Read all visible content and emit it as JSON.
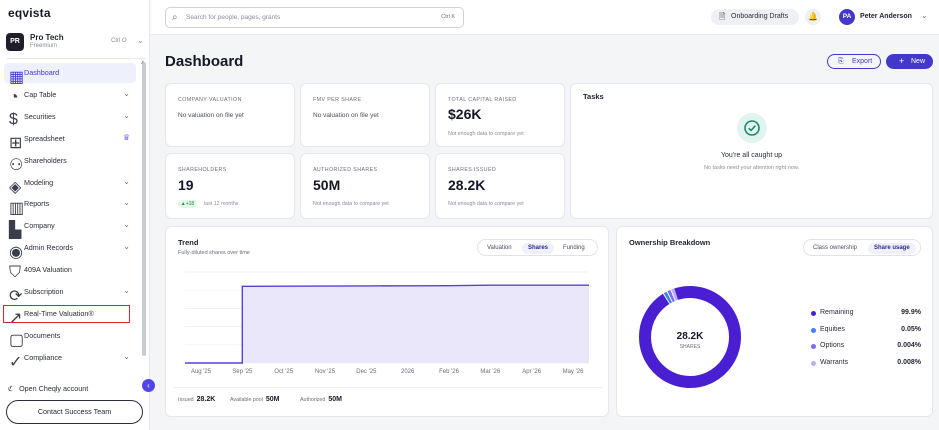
{
  "brand": {
    "logo": "eqvista"
  },
  "org": {
    "initials": "PR",
    "name": "Pro Tech",
    "plan": "Freemium",
    "shortcut": "Ctrl O"
  },
  "sidebar": {
    "items": [
      {
        "label": "Dashboard",
        "icon": "grid-icon",
        "active": true
      },
      {
        "label": "Cap Table",
        "icon": "chart-pie-icon",
        "chevron": true
      },
      {
        "label": "Securities",
        "icon": "dollar-icon",
        "chevron": true
      },
      {
        "label": "Spreadsheet",
        "icon": "table-icon",
        "crown": true
      },
      {
        "label": "Shareholders",
        "icon": "users-icon"
      },
      {
        "label": "Modeling",
        "icon": "layers-icon",
        "chevron": true
      },
      {
        "label": "Reports",
        "icon": "bar-chart-icon",
        "chevron": true
      },
      {
        "label": "Company",
        "icon": "building-icon",
        "chevron": true
      },
      {
        "label": "Admin Records",
        "icon": "record-icon",
        "chevron": true
      },
      {
        "label": "409A Valuation",
        "icon": "shield-icon"
      },
      {
        "label": "Subscription",
        "icon": "subscription-icon",
        "chevron": true
      },
      {
        "label": "Real-Time Valuation®",
        "icon": "trend-line-icon"
      },
      {
        "label": "Documents",
        "icon": "document-icon"
      },
      {
        "label": "Compliance",
        "icon": "compliance-icon",
        "chevron": true
      }
    ],
    "cheqly": "Open Cheqly account",
    "contact": "Contact Success Team"
  },
  "header": {
    "search_placeholder": "Search for people, pages, grants",
    "search_shortcut": "Ctrl K",
    "drafts": "Onboarding Drafts",
    "avatar_initials": "PA",
    "user_name": "Peter Anderson"
  },
  "page": {
    "title": "Dashboard",
    "export": "Export",
    "new": "New"
  },
  "metrics": {
    "company_valuation": {
      "label": "COMPANY VALUATION",
      "note": "No valuation on file yet"
    },
    "fmv": {
      "label": "FMV PER SHARE",
      "note": "No valuation on file yet"
    },
    "capital": {
      "label": "TOTAL CAPITAL RAISED",
      "value": "$26K",
      "sub": "Not enough data to compare yet"
    },
    "shareholders": {
      "label": "SHAREHOLDERS",
      "value": "19",
      "badge": "▲+18",
      "sub": "last 12 months"
    },
    "authorized": {
      "label": "AUTHORIZED SHARES",
      "value": "50M",
      "sub": "Not enough data to compare yet"
    },
    "issued": {
      "label": "SHARES ISSUED",
      "value": "28.2K",
      "sub": "Not enough data to compare yet"
    }
  },
  "tasks": {
    "title": "Tasks",
    "caught_up": "You're all caught up",
    "nothing": "No tasks need your attention right now."
  },
  "trend": {
    "title": "Trend",
    "subtitle": "Fully-diluted shares over time",
    "tabs": [
      "Valuation",
      "Shares",
      "Funding"
    ],
    "active_tab": "Shares",
    "footer": {
      "issued_label": "Issued",
      "issued_value": "28.2K",
      "pool_label": "Available pool",
      "pool_value": "50M",
      "authorized_label": "Authorized",
      "authorized_value": "50M"
    }
  },
  "chart_data": [
    {
      "type": "area",
      "title": "Trend",
      "subtitle": "Fully-diluted shares over time",
      "x": [
        "Aug '25",
        "Sep '25",
        "Oct '25",
        "Nov '25",
        "Dec '25",
        "2026",
        "Feb '26",
        "Mar '26",
        "Apr '26",
        "May '26"
      ],
      "points": [
        {
          "x": "Aug '25",
          "y": 0
        },
        {
          "x": "Sep '25",
          "y": 0
        },
        {
          "x": "Sep '25",
          "y": 27800
        },
        {
          "x": "Oct '25",
          "y": 27850
        },
        {
          "x": "Nov '25",
          "y": 27900
        },
        {
          "x": "Dec '25",
          "y": 27950
        },
        {
          "x": "2026",
          "y": 28000
        },
        {
          "x": "Feb '26",
          "y": 28050
        },
        {
          "x": "Mar '26",
          "y": 28200
        },
        {
          "x": "Apr '26",
          "y": 28200
        },
        {
          "x": "May '26",
          "y": 28200
        },
        {
          "x": "end",
          "y": 28200
        }
      ],
      "ylim": [
        0,
        33000
      ],
      "grid": true,
      "color": "#5b3fd6"
    },
    {
      "type": "pie",
      "title": "Ownership Breakdown",
      "center_value": "28.2K",
      "center_label": "SHARES",
      "categories": [
        "Remaining",
        "Equities",
        "Options",
        "Warrants"
      ],
      "values": [
        99.9,
        0.05,
        0.004,
        0.008
      ],
      "labels": [
        "99.9%",
        "0.05%",
        "0.004%",
        "0.008%"
      ],
      "colors": [
        "#4a1fd1",
        "#3b82f6",
        "#7a6df0",
        "#b8aef5"
      ]
    }
  ],
  "ownership": {
    "title": "Ownership Breakdown",
    "tabs": [
      "Class ownership",
      "Share usage"
    ],
    "active_tab": "Share usage"
  }
}
